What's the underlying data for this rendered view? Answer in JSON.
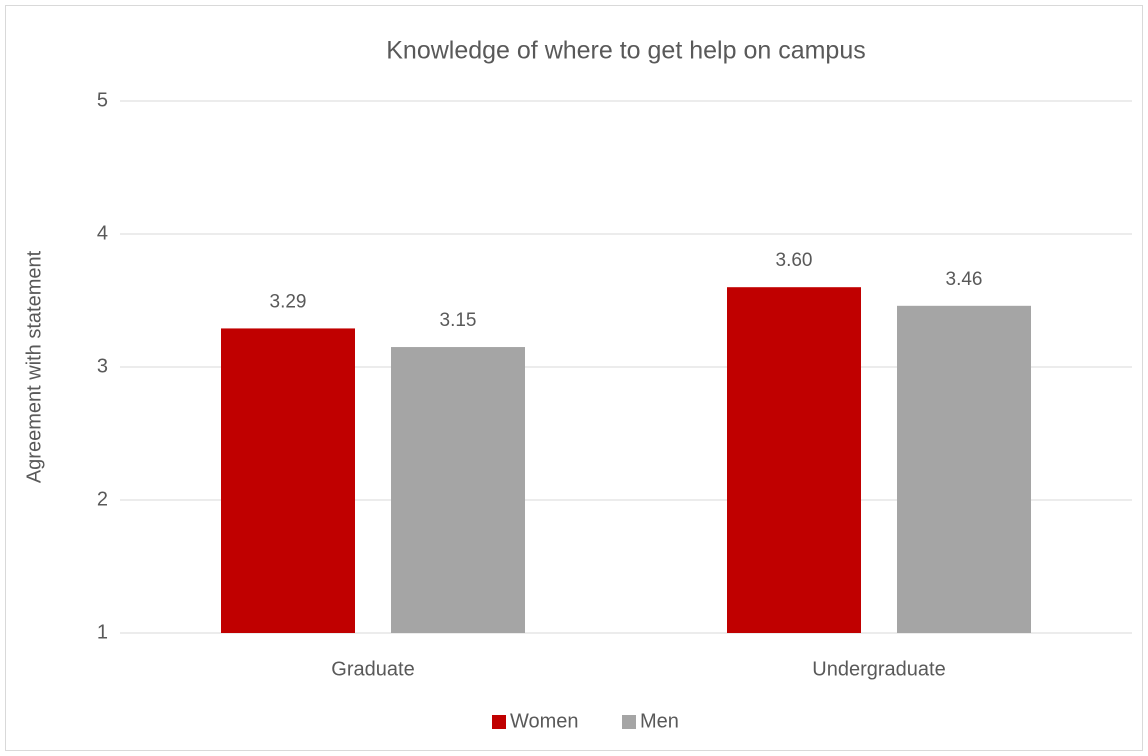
{
  "chart_data": {
    "type": "bar",
    "title": "Knowledge of where to get help on campus",
    "y_label": "Agreement with statement",
    "categories": [
      "Graduate",
      "Undergraduate"
    ],
    "series": [
      {
        "name": "Women",
        "color": "#c00000",
        "values": [
          3.29,
          3.6
        ],
        "value_labels": [
          "3.29",
          "3.60"
        ]
      },
      {
        "name": "Men",
        "color": "#a5a5a5",
        "values": [
          3.15,
          3.46
        ],
        "value_labels": [
          "3.15",
          "3.46"
        ]
      }
    ],
    "ylim": [
      1,
      5
    ],
    "yticks": [
      1,
      2,
      3,
      4,
      5
    ],
    "grid": true,
    "legend": "bottom"
  }
}
